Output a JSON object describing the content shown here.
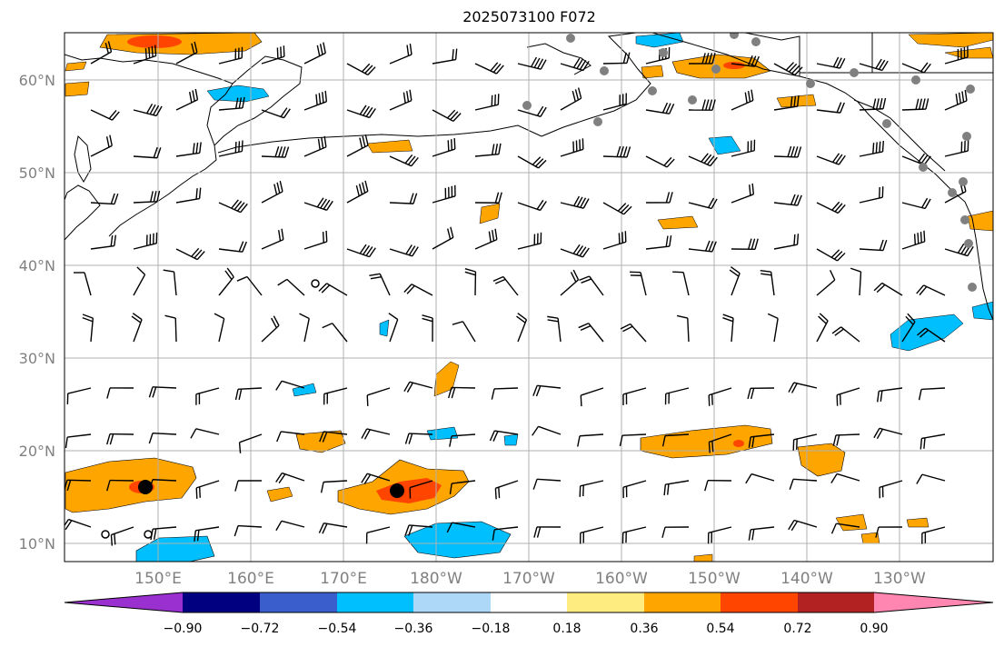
{
  "title": "2025073100 F072",
  "lat_labels": [
    "60°N",
    "50°N",
    "40°N",
    "30°N",
    "20°N",
    "10°N"
  ],
  "lon_labels": [
    "150°E",
    "160°E",
    "170°E",
    "180°W",
    "170°W",
    "160°W",
    "150°W",
    "140°W",
    "130°W"
  ],
  "colorbar": {
    "ticks": [
      "−0.90",
      "−0.72",
      "−0.54",
      "−0.36",
      "−0.18",
      "0.18",
      "0.36",
      "0.54",
      "0.72",
      "0.90"
    ],
    "colors": [
      "#9b30d0",
      "#000080",
      "#3a5fcd",
      "#00bfff",
      "#add8f8",
      "#ffffff",
      "#ffec80",
      "#ffa500",
      "#ff4500",
      "#b22222",
      "#ff86b0"
    ]
  },
  "colors": {
    "grid": "#b0b0b0",
    "coast": "#000000",
    "station": "#808080",
    "barb": "#000000"
  }
}
